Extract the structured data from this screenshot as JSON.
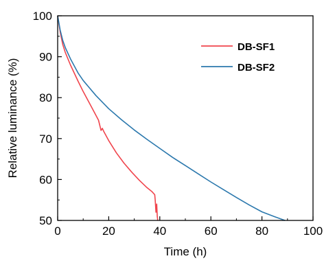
{
  "chart_data": {
    "type": "line",
    "title": "",
    "xlabel": "Time (h)",
    "ylabel": "Relative luminance (%)",
    "xlim": [
      0,
      100
    ],
    "ylim": [
      50,
      100
    ],
    "xticks": [
      0,
      20,
      40,
      60,
      80,
      100
    ],
    "yticks": [
      50,
      60,
      70,
      80,
      90,
      100
    ],
    "grid": false,
    "legend": "top-right",
    "series": [
      {
        "name": "DB-SF1",
        "color": "#f0444c",
        "x": [
          0,
          1,
          2,
          3,
          5,
          8,
          10,
          13,
          16,
          17,
          17.5,
          18,
          20,
          23,
          26,
          29,
          32,
          35,
          37,
          38,
          38.2,
          38.5,
          38.8,
          39,
          39.2
        ],
        "y": [
          100,
          96,
          93,
          91,
          88,
          84,
          81.5,
          78,
          74.5,
          72,
          72.5,
          71.8,
          69.5,
          66.5,
          64,
          61.8,
          59.8,
          58,
          57,
          56.3,
          55,
          52,
          54,
          51,
          50
        ]
      },
      {
        "name": "DB-SF2",
        "color": "#2b78ad",
        "x": [
          0,
          1,
          2,
          3,
          5,
          8,
          10,
          15,
          20,
          25,
          30,
          35,
          40,
          45,
          50,
          55,
          60,
          65,
          70,
          75,
          80,
          85,
          89
        ],
        "y": [
          100,
          96.5,
          94,
          92.2,
          89.5,
          86,
          84.2,
          80.5,
          77.3,
          74.6,
          72.1,
          69.8,
          67.6,
          65.4,
          63.4,
          61.4,
          59.4,
          57.5,
          55.6,
          53.8,
          52.1,
          50.9,
          50
        ]
      }
    ]
  }
}
